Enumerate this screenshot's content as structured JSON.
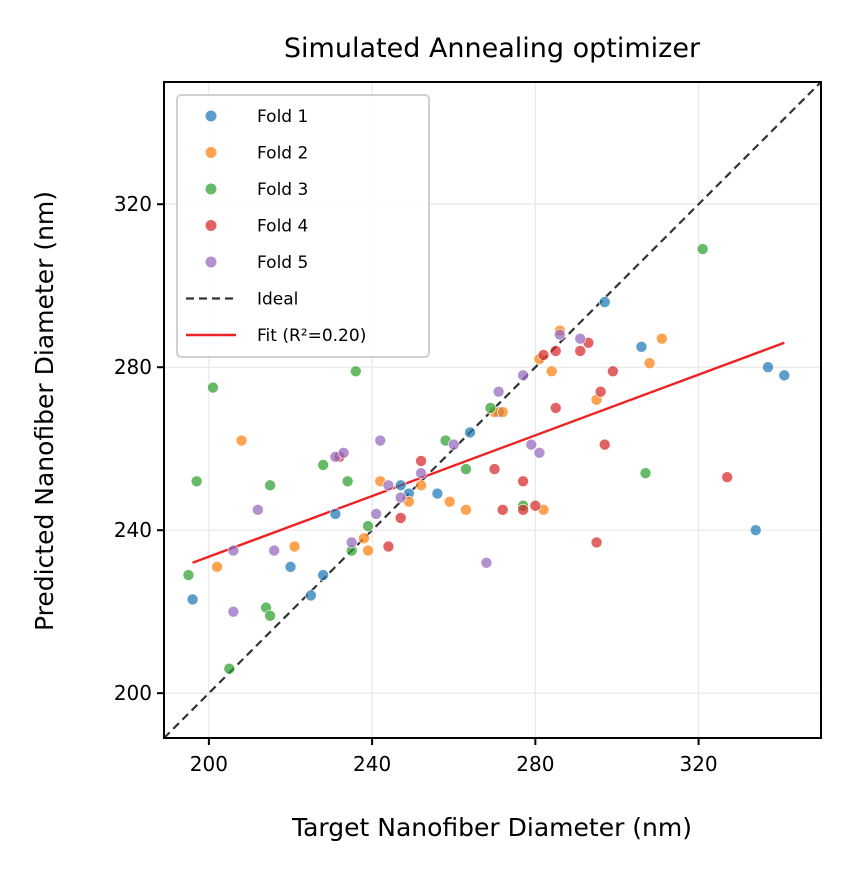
{
  "chart_data": {
    "type": "scatter",
    "title": "Simulated Annealing optimizer",
    "xlabel": "Target Nanofiber Diameter (nm)",
    "ylabel": "Predicted Nanofiber  Diameter (nm)",
    "xlim": [
      189,
      350
    ],
    "ylim": [
      189,
      350
    ],
    "xticks": [
      200,
      240,
      280,
      320
    ],
    "yticks": [
      200,
      240,
      280,
      320
    ],
    "grid": true,
    "legend_position": "top-left",
    "series": [
      {
        "name": "Fold 1",
        "color": "#1f77b4",
        "points": [
          [
            196,
            223
          ],
          [
            220,
            231
          ],
          [
            225,
            224
          ],
          [
            228,
            229
          ],
          [
            231,
            244
          ],
          [
            247,
            251
          ],
          [
            249,
            249
          ],
          [
            256,
            249
          ],
          [
            264,
            264
          ],
          [
            271,
            269
          ],
          [
            297,
            296
          ],
          [
            306,
            285
          ],
          [
            334,
            240
          ],
          [
            337,
            280
          ],
          [
            341,
            278
          ]
        ]
      },
      {
        "name": "Fold 2",
        "color": "#ff7f0e",
        "points": [
          [
            202,
            231
          ],
          [
            208,
            262
          ],
          [
            221,
            236
          ],
          [
            238,
            238
          ],
          [
            239,
            235
          ],
          [
            242,
            252
          ],
          [
            249,
            247
          ],
          [
            252,
            251
          ],
          [
            259,
            247
          ],
          [
            263,
            245
          ],
          [
            270,
            269
          ],
          [
            272,
            269
          ],
          [
            281,
            282
          ],
          [
            282,
            245
          ],
          [
            284,
            279
          ],
          [
            286,
            289
          ],
          [
            295,
            272
          ],
          [
            308,
            281
          ],
          [
            311,
            287
          ]
        ]
      },
      {
        "name": "Fold 3",
        "color": "#2ca02c",
        "points": [
          [
            195,
            229
          ],
          [
            197,
            252
          ],
          [
            201,
            275
          ],
          [
            205,
            206
          ],
          [
            214,
            221
          ],
          [
            215,
            219
          ],
          [
            215,
            251
          ],
          [
            228,
            256
          ],
          [
            234,
            252
          ],
          [
            235,
            235
          ],
          [
            236,
            279
          ],
          [
            239,
            241
          ],
          [
            258,
            262
          ],
          [
            263,
            255
          ],
          [
            269,
            270
          ],
          [
            277,
            246
          ],
          [
            307,
            254
          ],
          [
            321,
            309
          ]
        ]
      },
      {
        "name": "Fold 4",
        "color": "#d62728",
        "points": [
          [
            232,
            258
          ],
          [
            244,
            236
          ],
          [
            247,
            243
          ],
          [
            252,
            257
          ],
          [
            270,
            255
          ],
          [
            272,
            245
          ],
          [
            277,
            252
          ],
          [
            277,
            245
          ],
          [
            280,
            246
          ],
          [
            282,
            283
          ],
          [
            285,
            284
          ],
          [
            285,
            270
          ],
          [
            291,
            284
          ],
          [
            293,
            286
          ],
          [
            295,
            237
          ],
          [
            296,
            274
          ],
          [
            297,
            261
          ],
          [
            299,
            279
          ],
          [
            327,
            253
          ]
        ]
      },
      {
        "name": "Fold 5",
        "color": "#9467bd",
        "points": [
          [
            206,
            220
          ],
          [
            206,
            235
          ],
          [
            212,
            245
          ],
          [
            216,
            235
          ],
          [
            231,
            258
          ],
          [
            233,
            259
          ],
          [
            235,
            237
          ],
          [
            241,
            244
          ],
          [
            242,
            262
          ],
          [
            244,
            251
          ],
          [
            247,
            248
          ],
          [
            252,
            254
          ],
          [
            260,
            261
          ],
          [
            268,
            232
          ],
          [
            271,
            274
          ],
          [
            277,
            278
          ],
          [
            279,
            261
          ],
          [
            281,
            259
          ],
          [
            286,
            288
          ],
          [
            291,
            287
          ]
        ]
      }
    ],
    "ideal": {
      "name": "Ideal",
      "color": "#333333",
      "points": [
        [
          189,
          189
        ],
        [
          350,
          350
        ]
      ]
    },
    "fit": {
      "name": "Fit (R²=0.20)",
      "color": "#ee2222",
      "points": [
        [
          196,
          232
        ],
        [
          341,
          286
        ]
      ]
    }
  }
}
